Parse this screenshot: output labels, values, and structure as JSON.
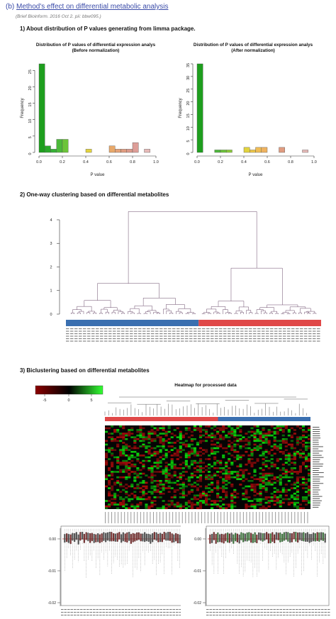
{
  "header": {
    "prefix": "(b)",
    "title": "Method's effect on differential metabolic analysis"
  },
  "citation": "(Brief Bioinform. 2016 Oct 2. pii: bbw095.)",
  "sections": {
    "s1": "1) About distribution of P values generating from limma package.",
    "s2": "2) One-way clustering based on differential metabolites",
    "s3": "3) Biclustering based on differential metabolites"
  },
  "chart_data": [
    {
      "type": "bar",
      "title": "Distribution of P values of differential expression analys",
      "subtitle": "(Before normalization)",
      "xlabel": "P value",
      "ylabel": "Frequency",
      "xlim": [
        0,
        1
      ],
      "ylim": [
        0,
        27
      ],
      "xticks": [
        "0.0",
        "0.2",
        "0.4",
        "0.6",
        "0.8",
        "1.0"
      ],
      "yticks": [
        "0",
        "5",
        "10",
        "15",
        "20",
        "25"
      ],
      "bin_width": 0.05,
      "bins": [
        0.0,
        0.05,
        0.1,
        0.15,
        0.2,
        0.25,
        0.3,
        0.35,
        0.4,
        0.45,
        0.5,
        0.55,
        0.6,
        0.65,
        0.7,
        0.75,
        0.8,
        0.85,
        0.9,
        0.95
      ],
      "values": [
        27,
        2,
        1,
        4,
        4,
        0,
        0,
        0,
        1,
        0,
        0,
        0,
        2,
        1,
        1,
        1,
        3,
        0,
        1,
        0
      ],
      "colors": [
        "#1e9e1e",
        "#2aa82a",
        "#35b035",
        "#4cb93a",
        "#6cc43a",
        "#8bcb3a",
        "#a8cf3a",
        "#c6d23c",
        "#e2d33e",
        "#efc846",
        "#f0bd55",
        "#eeb260",
        "#e8a86a",
        "#e5a276",
        "#e09c80",
        "#dc9a8c",
        "#dd9e98",
        "#e0aaa6",
        "#e6bab8",
        "#eccac8"
      ]
    },
    {
      "type": "bar",
      "title": "Distribution of P values of differential expression analys",
      "subtitle": "(After normalization)",
      "xlabel": "P value",
      "ylabel": "Frequency",
      "xlim": [
        0,
        1
      ],
      "ylim": [
        0,
        35
      ],
      "xticks": [
        "0.0",
        "0.2",
        "0.4",
        "0.6",
        "0.8",
        "1.0"
      ],
      "yticks": [
        "0",
        "5",
        "10",
        "15",
        "20",
        "25",
        "30",
        "35"
      ],
      "bin_width": 0.05,
      "bins": [
        0.0,
        0.05,
        0.1,
        0.15,
        0.2,
        0.25,
        0.3,
        0.35,
        0.4,
        0.45,
        0.5,
        0.55,
        0.6,
        0.65,
        0.7,
        0.75,
        0.8,
        0.85,
        0.9,
        0.95
      ],
      "values": [
        35,
        0,
        0,
        1,
        1,
        1,
        0,
        0,
        2,
        1,
        2,
        2,
        0,
        0,
        2,
        0,
        0,
        0,
        1,
        0
      ],
      "colors": [
        "#1e9e1e",
        "#2aa82a",
        "#35b035",
        "#4cb93a",
        "#6cc43a",
        "#8bcb3a",
        "#a8cf3a",
        "#c6d23c",
        "#e2d33e",
        "#efc846",
        "#f0bd55",
        "#eeb260",
        "#e8a86a",
        "#e5a276",
        "#e09c80",
        "#dc9a8c",
        "#dd9e98",
        "#e0aaa6",
        "#e6bab8",
        "#eccac8"
      ]
    },
    {
      "type": "dendrogram",
      "yticks": [
        "0",
        "1",
        "2",
        "3",
        "4"
      ],
      "ylim": [
        0,
        4.3
      ],
      "group_bar": {
        "left_color": "#3a6fb0",
        "right_color": "#e04848",
        "split": 0.52
      }
    },
    {
      "type": "heatmap",
      "title": "Heatmap for processed data",
      "legend_ticks": [
        "-5",
        "0",
        "5"
      ],
      "colors": {
        "low": "#8b0000",
        "mid": "#000000",
        "high": "#33ff33"
      }
    },
    {
      "type": "box",
      "panel": "left",
      "yticks": [
        "0.00",
        "-0.01",
        "-0.02"
      ]
    },
    {
      "type": "box",
      "panel": "right",
      "yticks": [
        "0.00",
        "-0.01",
        "-0.02"
      ]
    }
  ]
}
